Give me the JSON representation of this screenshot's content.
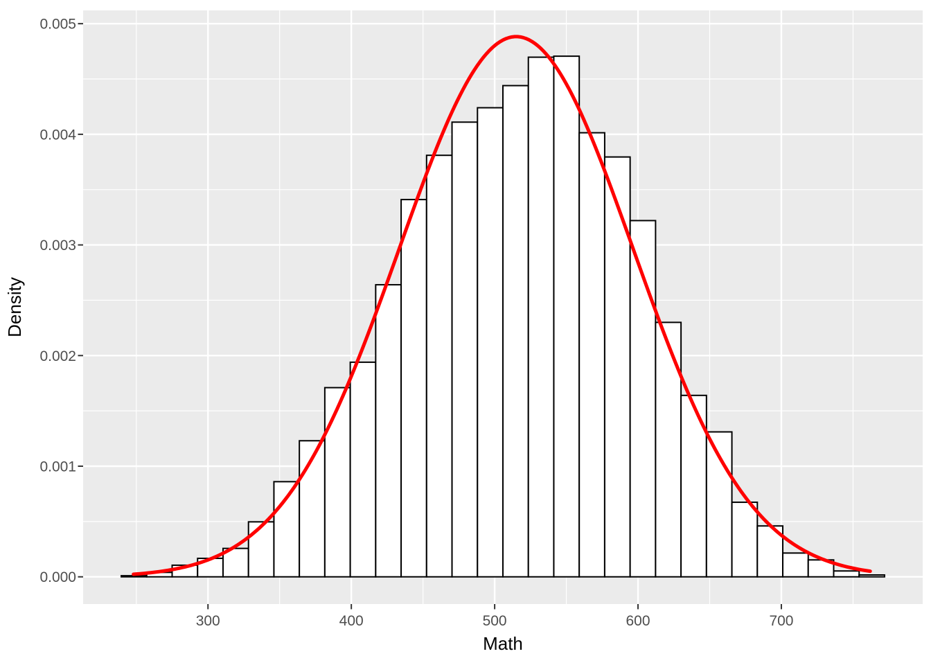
{
  "chart_data": {
    "type": "histogram_with_density_curve",
    "title": "",
    "xlabel": "Math",
    "ylabel": "Density",
    "x_major_ticks": [
      300,
      400,
      500,
      600,
      700
    ],
    "x_minor_ticks": [
      250,
      350,
      450,
      550,
      650,
      750
    ],
    "y_tick_labels": [
      "0.000",
      "0.001",
      "0.002",
      "0.003",
      "0.004",
      "0.005"
    ],
    "y_tick_values": [
      0,
      0.001,
      0.002,
      0.003,
      0.004,
      0.005
    ],
    "y_minor_ticks": [
      0.0005,
      0.0015,
      0.0025,
      0.0035,
      0.0045
    ],
    "xlim": [
      212.9,
      798.6
    ],
    "ylim": [
      -0.000246,
      0.00512
    ],
    "grid": "on",
    "legend": "none",
    "histogram": {
      "bin_start": 239.5,
      "bin_width": 17.75,
      "bin_count": 30,
      "densities": [
        1e-05,
        4e-05,
        0.000105,
        0.000167,
        0.000257,
        0.000497,
        0.00086,
        0.00123,
        0.00171,
        0.00194,
        0.00264,
        0.00341,
        0.00381,
        0.00411,
        0.00424,
        0.00444,
        0.004697,
        0.004706,
        0.004014,
        0.003795,
        0.00322,
        0.0023,
        0.00164,
        0.00131,
        0.000674,
        0.00046,
        0.000215,
        0.000153,
        5.3e-05,
        1.7e-05
      ],
      "fill": "#FFFFFF",
      "stroke": "#000000"
    },
    "density_curve": {
      "distribution": "normal",
      "mean": 515,
      "sd": 81.7,
      "x_start": 248,
      "x_end": 762,
      "color": "#FF0000"
    },
    "style": {
      "panel_bg": "#EBEBEB",
      "grid_color": "#FFFFFF",
      "tick_label_color": "#4D4D4D",
      "axis_title_color": "#000000",
      "tick_mark_color": "#333333",
      "outer_bg": "#FFFFFF"
    }
  }
}
